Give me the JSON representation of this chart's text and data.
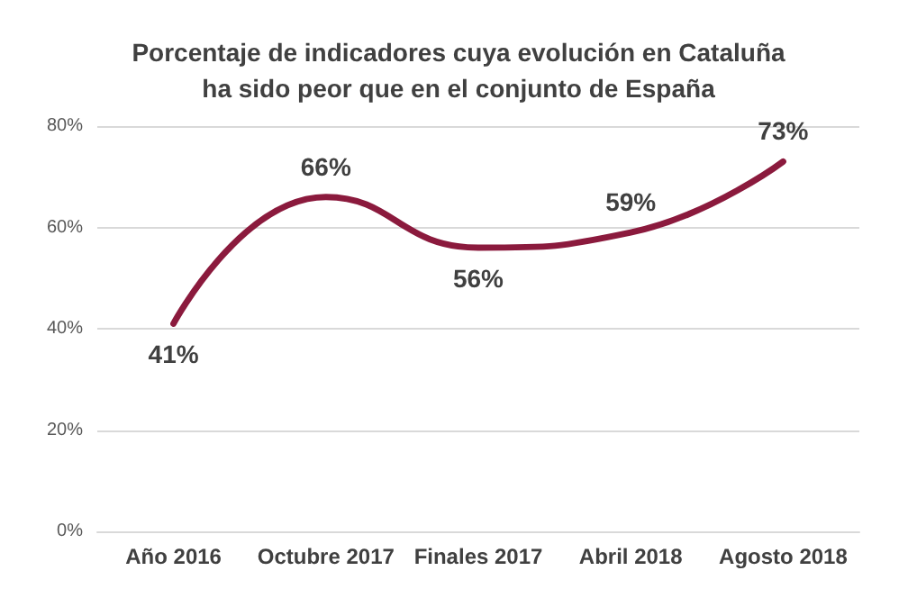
{
  "chart_data": {
    "type": "line",
    "title": "Porcentaje de indicadores cuya evolución en Cataluña\nha sido peor que en el conjunto de España",
    "categories": [
      "Año 2016",
      "Octubre 2017",
      "Finales 2017",
      "Abril 2018",
      "Agosto 2018"
    ],
    "values": [
      41,
      66,
      56,
      59,
      73
    ],
    "value_labels": [
      "41%",
      "66%",
      "56%",
      "59%",
      "73%"
    ],
    "color": "#8b1a3d",
    "ylim": [
      0,
      80
    ],
    "yticks": [
      {
        "value": 0,
        "label": "0%"
      },
      {
        "value": 20,
        "label": "20%"
      },
      {
        "value": 40,
        "label": "40%"
      },
      {
        "value": 60,
        "label": "60%"
      },
      {
        "value": 80,
        "label": "80%"
      }
    ],
    "grid": "y",
    "marker": "none",
    "line_style": "solid"
  }
}
